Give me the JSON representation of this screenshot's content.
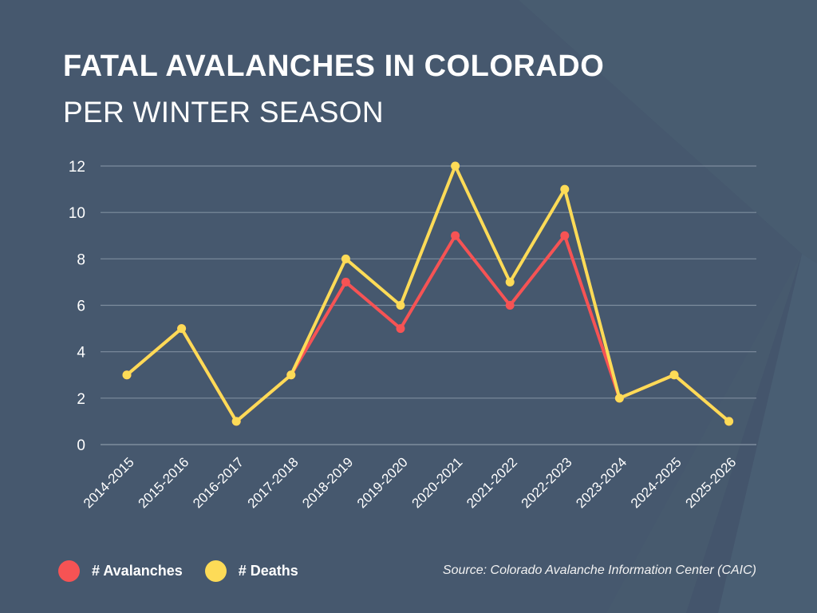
{
  "header": {
    "title": "FATAL AVALANCHES IN COLORADO",
    "subtitle": "PER WINTER SEASON"
  },
  "colors": {
    "background": "#475a6e",
    "avalanches": "#f65354",
    "deaths": "#fddb57",
    "gridline": "#7e8d9e",
    "text": "#ffffff"
  },
  "legend": [
    {
      "label": "# Avalanches",
      "color": "#f65354"
    },
    {
      "label": "# Deaths",
      "color": "#fddb57"
    }
  ],
  "source": "Source: Colorado Avalanche Information Center (CAIC)",
  "chart_data": {
    "type": "line",
    "title": "FATAL AVALANCHES IN COLORADO",
    "subtitle": "PER WINTER SEASON",
    "xlabel": "",
    "ylabel": "",
    "categories": [
      "2014-2015",
      "2015-2016",
      "2016-2017",
      "2017-2018",
      "2018-2019",
      "2019-2020",
      "2020-2021",
      "2021-2022",
      "2022-2023",
      "2023-2024",
      "2024-2025",
      "2025-2026"
    ],
    "series": [
      {
        "name": "# Avalanches",
        "color": "#f65354",
        "values": [
          3,
          5,
          1,
          3,
          7,
          5,
          9,
          6,
          9,
          2,
          3,
          1
        ]
      },
      {
        "name": "# Deaths",
        "color": "#fddb57",
        "values": [
          3,
          5,
          1,
          3,
          8,
          6,
          12,
          7,
          11,
          2,
          3,
          1
        ]
      }
    ],
    "ylim": [
      0,
      12
    ],
    "yticks": [
      0,
      2,
      4,
      6,
      8,
      10,
      12
    ],
    "grid": true,
    "legend_position": "bottom-left",
    "annotation": "Source: Colorado Avalanche Information Center (CAIC)"
  }
}
